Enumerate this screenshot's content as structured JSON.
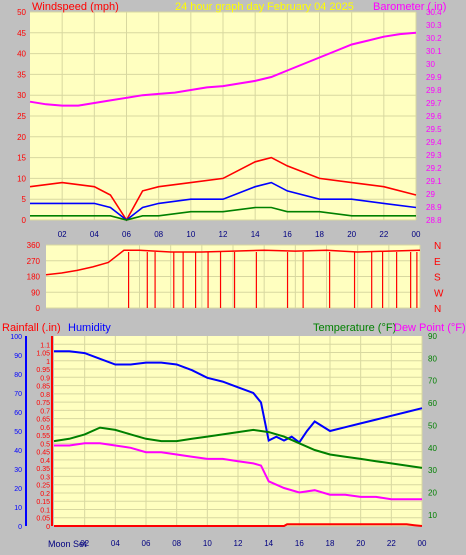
{
  "header": {
    "left_label": "Windspeed (mph)",
    "title": "24 hour graph day",
    "date": "February 04 2025",
    "right_label": "Barometer (.in)"
  },
  "colors": {
    "panel_bg": "#ffffc0",
    "frame_bg": "#c0c0c0",
    "wind_gust": "#ff0000",
    "wind_avg": "#0000ff",
    "wind_low": "#008000",
    "barometer": "#ff00ff",
    "direction": "#ff0000",
    "humidity": "#0000ff",
    "temperature": "#008000",
    "dew_point": "#ff00ff",
    "rainfall": "#ff0000",
    "header_yellow": "#ffff00",
    "header_magenta": "#ff00ff",
    "header_red": "#ff0000",
    "header_blue": "#0000ff",
    "header_green": "#008000"
  },
  "chart_data": [
    {
      "type": "line",
      "name": "wind-barometer",
      "x_ticks": [
        "02",
        "04",
        "06",
        "08",
        "10",
        "12",
        "14",
        "16",
        "18",
        "20",
        "22",
        "00"
      ],
      "y_left": {
        "label": "Windspeed (mph)",
        "range": [
          0,
          50
        ],
        "ticks": [
          "0",
          "5",
          "10",
          "15",
          "20",
          "25",
          "30",
          "35",
          "40",
          "45",
          "50"
        ]
      },
      "y_right": {
        "label": "Barometer (.in)",
        "range": [
          28.8,
          30.4
        ],
        "ticks": [
          "28.8",
          "28.9",
          "29",
          "29.1",
          "29.2",
          "29.3",
          "29.4",
          "29.5",
          "29.6",
          "29.7",
          "29.8",
          "29.9",
          "30",
          "30.1",
          "30.2",
          "30.3",
          "30.4"
        ]
      },
      "series": [
        {
          "key": "barometer",
          "hours": [
            0,
            1,
            2,
            3,
            4,
            5,
            6,
            7,
            8,
            9,
            10,
            11,
            12,
            13,
            14,
            15,
            16,
            17,
            18,
            19,
            20,
            21,
            22,
            23,
            24
          ],
          "values": [
            29.71,
            29.69,
            29.68,
            29.68,
            29.7,
            29.72,
            29.74,
            29.76,
            29.77,
            29.78,
            29.8,
            29.82,
            29.83,
            29.85,
            29.87,
            29.9,
            29.95,
            30.0,
            30.05,
            30.1,
            30.15,
            30.18,
            30.21,
            30.23,
            30.24
          ]
        },
        {
          "key": "wind_gust",
          "hours": [
            0,
            2,
            4,
            5,
            6,
            7,
            8,
            10,
            12,
            14,
            15,
            16,
            18,
            20,
            22,
            24
          ],
          "values": [
            8,
            9,
            8,
            6,
            0,
            7,
            8,
            9,
            10,
            14,
            15,
            13,
            10,
            9,
            8,
            6
          ]
        },
        {
          "key": "wind_avg",
          "hours": [
            0,
            2,
            4,
            5,
            6,
            7,
            8,
            10,
            12,
            14,
            15,
            16,
            18,
            20,
            22,
            24
          ],
          "values": [
            4,
            4,
            4,
            3,
            0,
            3,
            4,
            5,
            5,
            8,
            9,
            7,
            5,
            5,
            4,
            3
          ]
        },
        {
          "key": "wind_low",
          "hours": [
            0,
            2,
            4,
            5,
            6,
            7,
            8,
            10,
            12,
            14,
            15,
            16,
            18,
            20,
            22,
            24
          ],
          "values": [
            1,
            1,
            1,
            1,
            0,
            1,
            1,
            2,
            2,
            3,
            3,
            2,
            2,
            1,
            1,
            1
          ]
        }
      ]
    },
    {
      "type": "line",
      "name": "wind-direction",
      "y_left": {
        "range": [
          0,
          360
        ],
        "ticks": [
          "0",
          "90",
          "180",
          "270",
          "360"
        ]
      },
      "y_right_labels": [
        "N",
        "W",
        "S",
        "E",
        "N"
      ],
      "series": [
        {
          "key": "direction",
          "hours": [
            0,
            1,
            2,
            3,
            4,
            5,
            6,
            8,
            10,
            12,
            14,
            16,
            18,
            20,
            22,
            24
          ],
          "values": [
            190,
            200,
            215,
            235,
            260,
            330,
            330,
            320,
            320,
            325,
            330,
            325,
            330,
            320,
            325,
            330
          ]
        }
      ]
    },
    {
      "type": "line",
      "name": "temperature-humidity-rain",
      "header": {
        "rainfall": "Rainfall (.in)",
        "humidity": "Humidity",
        "temperature": "Temperature (°F)",
        "dew_point": "Dew Point (°F)"
      },
      "x_ticks": [
        "02",
        "04",
        "06",
        "08",
        "10",
        "12",
        "14",
        "16",
        "18",
        "20",
        "22",
        "00"
      ],
      "moon_label": "Moon Set",
      "y_humidity": {
        "range": [
          0,
          100
        ],
        "ticks": [
          "0",
          "10",
          "20",
          "30",
          "40",
          "50",
          "60",
          "70",
          "80",
          "90",
          "100"
        ]
      },
      "y_rain": {
        "range": [
          0,
          1.15
        ],
        "ticks": [
          "0",
          "0.05",
          "0.1",
          "0.15",
          "0.2",
          "0.25",
          "0.3",
          "0.35",
          "0.4",
          "0.45",
          "0.5",
          "0.55",
          "0.6",
          "0.65",
          "0.7",
          "0.75",
          "0.8",
          "0.85",
          "0.9",
          "0.95",
          "1",
          "1.05",
          "1.1"
        ]
      },
      "y_temp": {
        "range": [
          5,
          90
        ],
        "ticks": [
          "10",
          "20",
          "30",
          "40",
          "50",
          "60",
          "70",
          "80",
          "90"
        ]
      },
      "series": [
        {
          "key": "humidity",
          "hours": [
            0,
            1,
            2,
            3,
            4,
            5,
            6,
            7,
            8,
            9,
            10,
            11,
            12,
            13,
            13.5,
            14,
            14.5,
            15,
            15.5,
            16,
            16.5,
            17,
            18,
            19,
            20,
            21,
            22,
            23,
            24
          ],
          "values": [
            92,
            92,
            91,
            88,
            85,
            85,
            86,
            86,
            85,
            82,
            78,
            76,
            73,
            70,
            65,
            45,
            47,
            45,
            47,
            44,
            50,
            55,
            50,
            52,
            54,
            56,
            58,
            60,
            62
          ]
        },
        {
          "key": "temperature",
          "hours": [
            0,
            1,
            2,
            3,
            4,
            5,
            6,
            7,
            8,
            9,
            10,
            11,
            12,
            13,
            14,
            15,
            16,
            17,
            18,
            19,
            20,
            21,
            22,
            23,
            24
          ],
          "values": [
            43,
            44,
            46,
            49,
            48,
            46,
            44,
            43,
            43,
            44,
            45,
            46,
            47,
            48,
            47,
            45,
            42,
            39,
            37,
            36,
            35,
            34,
            33,
            32,
            31
          ]
        },
        {
          "key": "dew_point",
          "hours": [
            0,
            1,
            2,
            3,
            4,
            5,
            6,
            7,
            8,
            9,
            10,
            11,
            12,
            13,
            13.5,
            14,
            15,
            16,
            17,
            18,
            19,
            20,
            21,
            22,
            23,
            24
          ],
          "values": [
            41,
            41,
            42,
            42,
            41,
            40,
            38,
            38,
            37,
            36,
            35,
            35,
            34,
            33,
            32,
            25,
            22,
            20,
            21,
            19,
            19,
            18,
            18,
            17,
            17,
            17
          ]
        },
        {
          "key": "rainfall",
          "hours": [
            0,
            5,
            10,
            15,
            15.2,
            20,
            23,
            23.5,
            24
          ],
          "values": [
            0,
            0,
            0,
            0,
            0.01,
            0.01,
            0.01,
            0.005,
            0
          ]
        }
      ]
    }
  ]
}
